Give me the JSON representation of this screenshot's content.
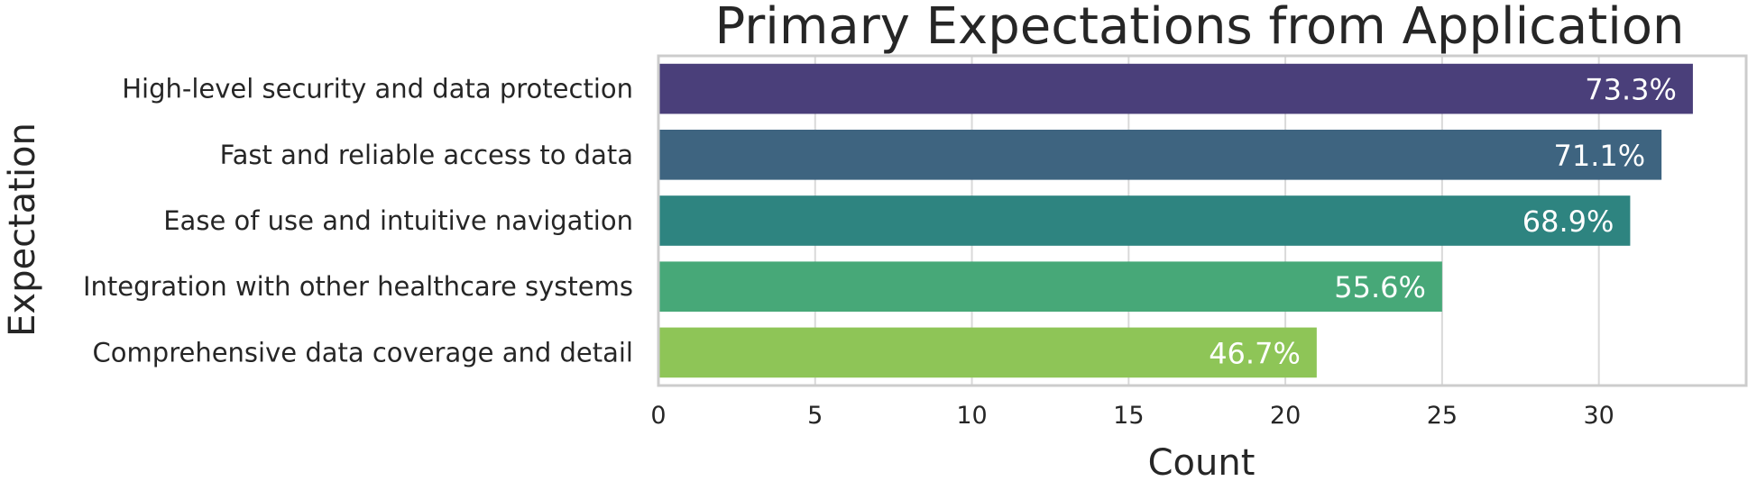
{
  "chart_data": {
    "type": "bar",
    "orientation": "horizontal",
    "title": "Primary Expectations from Application",
    "xlabel": "Count",
    "ylabel": "Expectation",
    "categories": [
      "High-level security and data protection",
      "Fast and reliable access to data",
      "Ease of use and intuitive navigation",
      "Integration with other healthcare systems",
      "Comprehensive data coverage and detail"
    ],
    "values": [
      33,
      32,
      31,
      25,
      21
    ],
    "data_labels": [
      "73.3%",
      "71.1%",
      "68.9%",
      "55.6%",
      "46.7%"
    ],
    "colors": [
      "#4a3f7a",
      "#3e6480",
      "#2e8480",
      "#47a878",
      "#8ec557"
    ],
    "xlim": [
      0,
      34.7
    ],
    "xticks": [
      0,
      5,
      10,
      15,
      20,
      25,
      30
    ],
    "grid": true,
    "legend": "none"
  }
}
